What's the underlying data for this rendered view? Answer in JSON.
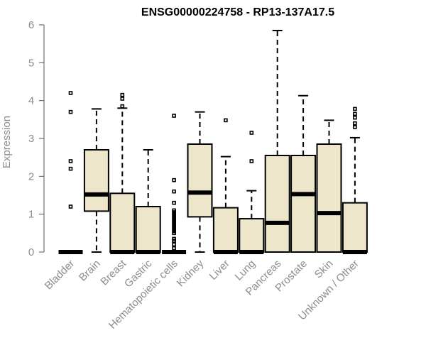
{
  "chart_data": {
    "type": "boxplot",
    "title": "ENSG00000224758 - RP13-137A17.5",
    "xlabel": "",
    "ylabel": "Expression",
    "ylim": [
      0,
      6
    ],
    "yticks": [
      0,
      1,
      2,
      3,
      4,
      5,
      6
    ],
    "colors": {
      "box_fill": "#ede6cb",
      "axis_text": "#8c8c8c",
      "stroke": "#000000"
    },
    "categories": [
      "Bladder",
      "Brain",
      "Breast",
      "Gastric",
      "Hematopoietic cells",
      "Kidney",
      "Liver",
      "Lung",
      "Pancreas",
      "Prostate",
      "Skin",
      "Unknown / Other"
    ],
    "boxes": [
      {
        "min": 0,
        "q1": 0,
        "median": 0,
        "q3": 0,
        "max": 0,
        "outliers": [
          1.2,
          2.2,
          2.4,
          3.7,
          4.2
        ]
      },
      {
        "min": 0,
        "q1": 1.08,
        "median": 1.52,
        "q3": 2.7,
        "max": 3.78,
        "outliers": []
      },
      {
        "min": 0,
        "q1": 0,
        "median": 0,
        "q3": 1.55,
        "max": 3.8,
        "outliers": [
          3.85,
          4.05,
          4.15
        ]
      },
      {
        "min": 0,
        "q1": 0,
        "median": 0,
        "q3": 1.2,
        "max": 2.7,
        "outliers": []
      },
      {
        "min": 0,
        "q1": 0,
        "median": 0,
        "q3": 0,
        "max": 0,
        "outliers": [
          0.1,
          0.2,
          0.3,
          0.35,
          0.5,
          0.55,
          0.6,
          0.65,
          0.7,
          0.75,
          0.8,
          0.85,
          0.9,
          0.95,
          1.0,
          1.05,
          1.1,
          1.3,
          1.6,
          1.9,
          3.6
        ]
      },
      {
        "min": 0,
        "q1": 0.93,
        "median": 1.57,
        "q3": 2.85,
        "max": 3.7,
        "outliers": []
      },
      {
        "min": 0,
        "q1": 0,
        "median": 0,
        "q3": 1.17,
        "max": 2.52,
        "outliers": [
          3.48
        ]
      },
      {
        "min": 0,
        "q1": 0,
        "median": 0,
        "q3": 0.88,
        "max": 1.62,
        "outliers": [
          2.4,
          3.15
        ]
      },
      {
        "min": 0,
        "q1": 0,
        "median": 0.77,
        "q3": 2.55,
        "max": 5.85,
        "outliers": []
      },
      {
        "min": 0,
        "q1": 0,
        "median": 1.53,
        "q3": 2.55,
        "max": 4.13,
        "outliers": []
      },
      {
        "min": 0,
        "q1": 0,
        "median": 1.03,
        "q3": 2.85,
        "max": 3.48,
        "outliers": []
      },
      {
        "min": 0,
        "q1": 0,
        "median": 0,
        "q3": 1.3,
        "max": 3.02,
        "outliers": [
          3.3,
          3.4,
          3.55,
          3.65,
          3.78
        ]
      }
    ]
  }
}
